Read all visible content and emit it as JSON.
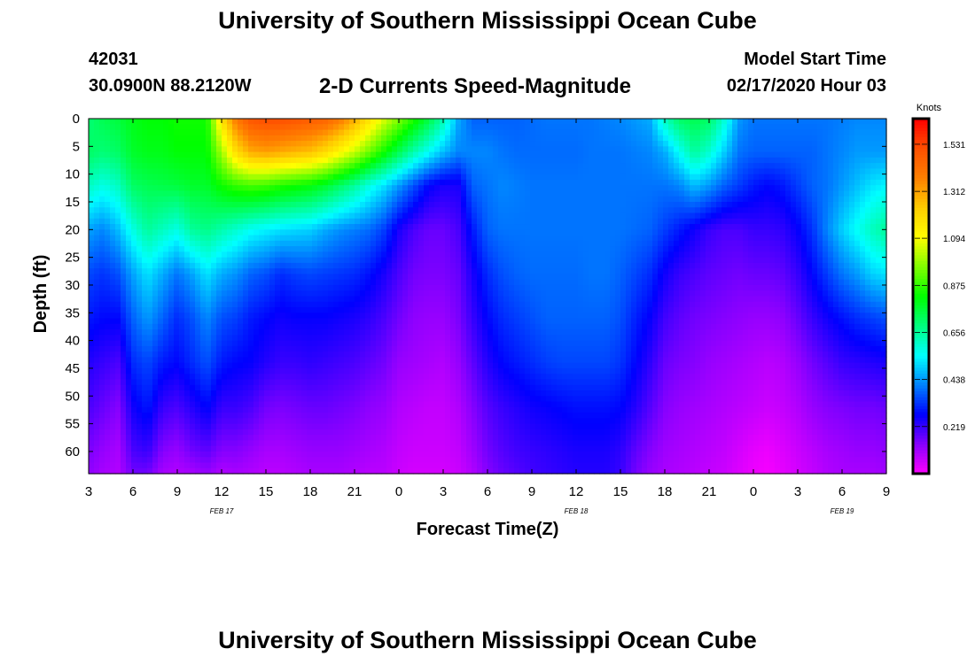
{
  "header": {
    "title": "University of Southern Mississippi Ocean Cube",
    "station_id": "42031",
    "station_coords": "30.0900N 88.2120W",
    "plot_title": "2-D Currents Speed-Magnitude",
    "model_label": "Model Start Time",
    "model_time": "02/17/2020 Hour 03"
  },
  "footer": {
    "title": "University of Southern Mississippi Ocean Cube"
  },
  "chart_data": {
    "type": "heatmap",
    "title": "2-D Currents Speed-Magnitude",
    "xlabel": "Forecast Time(Z)",
    "ylabel": "Depth (ft)",
    "x_hours_range": [
      0,
      54
    ],
    "x_tick_labels": [
      "3",
      "6",
      "9",
      "12",
      "15",
      "18",
      "21",
      "0",
      "3",
      "6",
      "9",
      "12",
      "15",
      "18",
      "21",
      "0",
      "3",
      "6",
      "9"
    ],
    "date_labels": [
      {
        "label": "FEB 17",
        "hour": 9
      },
      {
        "label": "FEB 18",
        "hour": 33
      },
      {
        "label": "FEB 19",
        "hour": 51
      }
    ],
    "y_ticks": [
      0,
      5,
      10,
      15,
      20,
      25,
      30,
      35,
      40,
      45,
      50,
      55,
      60
    ],
    "ylim": [
      0,
      64
    ],
    "colorbar": {
      "label": "Knots",
      "tick_labels": [
        "1.531",
        "1.312",
        "1.094",
        "0.875",
        "0.656",
        "0.438",
        "0.219"
      ],
      "tick_values": [
        1.531,
        1.312,
        1.094,
        0.875,
        0.656,
        0.438,
        0.219
      ],
      "range": [
        0,
        1.65
      ],
      "colors": [
        "#ff00ff",
        "#8800ff",
        "#0000ff",
        "#0080ff",
        "#00ffff",
        "#00ff80",
        "#00ff00",
        "#80ff00",
        "#ffff00",
        "#ffcc00",
        "#ff8000",
        "#ff5000",
        "#ff0000"
      ]
    },
    "grid_hours": [
      0,
      1,
      2,
      3,
      4,
      5,
      6,
      7,
      8,
      9,
      10,
      11,
      12,
      13,
      14,
      15,
      16,
      17,
      18,
      19,
      20,
      21,
      22,
      23,
      24,
      25,
      26,
      27,
      28,
      29,
      30,
      31,
      32,
      33,
      34,
      35,
      36,
      37,
      38,
      39,
      40,
      41,
      42,
      43,
      44,
      45,
      46,
      47,
      48,
      49,
      50,
      51,
      52,
      53,
      54
    ],
    "profile_depths": [
      0,
      6,
      12,
      20,
      28,
      36,
      44,
      52,
      60,
      64
    ],
    "speed_profiles": [
      [
        0.7,
        0.72,
        0.62,
        0.45,
        0.35,
        0.3,
        0.24,
        0.2,
        0.15,
        0.13
      ],
      [
        0.74,
        0.7,
        0.58,
        0.42,
        0.33,
        0.28,
        0.22,
        0.17,
        0.12,
        0.1
      ],
      [
        0.76,
        0.72,
        0.62,
        0.48,
        0.36,
        0.28,
        0.2,
        0.14,
        0.1,
        0.09
      ],
      [
        0.8,
        0.78,
        0.72,
        0.58,
        0.45,
        0.38,
        0.32,
        0.26,
        0.2,
        0.16
      ],
      [
        0.82,
        0.8,
        0.74,
        0.66,
        0.52,
        0.44,
        0.35,
        0.3,
        0.22,
        0.16
      ],
      [
        0.82,
        0.8,
        0.75,
        0.62,
        0.46,
        0.38,
        0.3,
        0.22,
        0.14,
        0.1
      ],
      [
        0.84,
        0.82,
        0.76,
        0.58,
        0.4,
        0.32,
        0.28,
        0.2,
        0.12,
        0.09
      ],
      [
        0.84,
        0.82,
        0.78,
        0.66,
        0.45,
        0.36,
        0.32,
        0.24,
        0.16,
        0.1
      ],
      [
        0.84,
        0.82,
        0.78,
        0.68,
        0.52,
        0.42,
        0.36,
        0.28,
        0.18,
        0.12
      ],
      [
        1.18,
        1.0,
        0.84,
        0.64,
        0.46,
        0.36,
        0.3,
        0.22,
        0.14,
        0.09
      ],
      [
        1.4,
        1.2,
        0.88,
        0.6,
        0.43,
        0.34,
        0.28,
        0.22,
        0.14,
        0.1
      ],
      [
        1.5,
        1.3,
        0.9,
        0.56,
        0.38,
        0.3,
        0.27,
        0.2,
        0.12,
        0.09
      ],
      [
        1.52,
        1.32,
        0.89,
        0.54,
        0.36,
        0.28,
        0.24,
        0.16,
        0.1,
        0.08
      ],
      [
        1.52,
        1.3,
        0.86,
        0.52,
        0.32,
        0.26,
        0.22,
        0.15,
        0.1,
        0.08
      ],
      [
        1.5,
        1.28,
        0.84,
        0.51,
        0.34,
        0.27,
        0.22,
        0.16,
        0.11,
        0.09
      ],
      [
        1.48,
        1.26,
        0.82,
        0.5,
        0.35,
        0.27,
        0.23,
        0.17,
        0.12,
        0.1
      ],
      [
        1.46,
        1.2,
        0.78,
        0.46,
        0.34,
        0.27,
        0.22,
        0.17,
        0.12,
        0.1
      ],
      [
        1.4,
        1.12,
        0.72,
        0.43,
        0.33,
        0.26,
        0.21,
        0.16,
        0.12,
        0.1
      ],
      [
        1.3,
        1.04,
        0.66,
        0.41,
        0.32,
        0.25,
        0.2,
        0.15,
        0.11,
        0.09
      ],
      [
        1.18,
        0.94,
        0.58,
        0.39,
        0.29,
        0.23,
        0.18,
        0.13,
        0.1,
        0.08
      ],
      [
        1.06,
        0.84,
        0.52,
        0.34,
        0.25,
        0.2,
        0.16,
        0.12,
        0.09,
        0.08
      ],
      [
        0.96,
        0.74,
        0.44,
        0.25,
        0.2,
        0.16,
        0.12,
        0.09,
        0.07,
        0.06
      ],
      [
        0.86,
        0.64,
        0.36,
        0.2,
        0.16,
        0.13,
        0.11,
        0.08,
        0.06,
        0.05
      ],
      [
        0.76,
        0.56,
        0.28,
        0.17,
        0.15,
        0.12,
        0.1,
        0.07,
        0.06,
        0.05
      ],
      [
        0.64,
        0.48,
        0.25,
        0.17,
        0.15,
        0.12,
        0.09,
        0.07,
        0.06,
        0.05
      ],
      [
        0.46,
        0.42,
        0.25,
        0.2,
        0.17,
        0.15,
        0.12,
        0.09,
        0.07,
        0.06
      ],
      [
        0.38,
        0.42,
        0.38,
        0.3,
        0.25,
        0.22,
        0.18,
        0.14,
        0.11,
        0.09
      ],
      [
        0.38,
        0.42,
        0.4,
        0.38,
        0.32,
        0.28,
        0.24,
        0.19,
        0.16,
        0.14
      ],
      [
        0.38,
        0.4,
        0.42,
        0.4,
        0.36,
        0.32,
        0.28,
        0.22,
        0.19,
        0.17
      ],
      [
        0.38,
        0.39,
        0.41,
        0.4,
        0.38,
        0.34,
        0.3,
        0.24,
        0.21,
        0.19
      ],
      [
        0.39,
        0.39,
        0.4,
        0.4,
        0.39,
        0.36,
        0.32,
        0.26,
        0.22,
        0.21
      ],
      [
        0.4,
        0.39,
        0.4,
        0.4,
        0.39,
        0.38,
        0.34,
        0.27,
        0.23,
        0.22
      ],
      [
        0.4,
        0.39,
        0.4,
        0.4,
        0.39,
        0.38,
        0.35,
        0.28,
        0.24,
        0.23
      ],
      [
        0.4,
        0.39,
        0.4,
        0.4,
        0.39,
        0.38,
        0.35,
        0.29,
        0.25,
        0.24
      ],
      [
        0.4,
        0.4,
        0.4,
        0.4,
        0.4,
        0.38,
        0.35,
        0.29,
        0.25,
        0.24
      ],
      [
        0.41,
        0.4,
        0.4,
        0.4,
        0.4,
        0.38,
        0.35,
        0.29,
        0.25,
        0.24
      ],
      [
        0.42,
        0.4,
        0.4,
        0.4,
        0.38,
        0.36,
        0.33,
        0.28,
        0.23,
        0.22
      ],
      [
        0.44,
        0.41,
        0.4,
        0.39,
        0.35,
        0.31,
        0.28,
        0.24,
        0.18,
        0.16
      ],
      [
        0.46,
        0.42,
        0.4,
        0.38,
        0.32,
        0.27,
        0.23,
        0.19,
        0.14,
        0.12
      ],
      [
        0.62,
        0.46,
        0.4,
        0.34,
        0.26,
        0.21,
        0.17,
        0.14,
        0.11,
        0.1
      ],
      [
        0.72,
        0.56,
        0.42,
        0.3,
        0.22,
        0.18,
        0.15,
        0.12,
        0.1,
        0.09
      ],
      [
        0.74,
        0.66,
        0.48,
        0.26,
        0.2,
        0.16,
        0.14,
        0.11,
        0.09,
        0.08
      ],
      [
        0.72,
        0.6,
        0.44,
        0.22,
        0.18,
        0.15,
        0.12,
        0.1,
        0.08,
        0.07
      ],
      [
        0.6,
        0.5,
        0.38,
        0.2,
        0.17,
        0.14,
        0.11,
        0.09,
        0.07,
        0.06
      ],
      [
        0.44,
        0.4,
        0.34,
        0.2,
        0.16,
        0.13,
        0.1,
        0.08,
        0.05,
        0.04
      ],
      [
        0.4,
        0.38,
        0.3,
        0.22,
        0.17,
        0.12,
        0.09,
        0.07,
        0.03,
        0.02
      ],
      [
        0.4,
        0.38,
        0.28,
        0.22,
        0.17,
        0.12,
        0.08,
        0.06,
        0.02,
        0.01
      ],
      [
        0.4,
        0.38,
        0.3,
        0.23,
        0.18,
        0.13,
        0.09,
        0.07,
        0.04,
        0.03
      ],
      [
        0.4,
        0.38,
        0.34,
        0.27,
        0.22,
        0.17,
        0.12,
        0.09,
        0.06,
        0.05
      ],
      [
        0.4,
        0.38,
        0.38,
        0.33,
        0.28,
        0.22,
        0.16,
        0.12,
        0.08,
        0.07
      ],
      [
        0.4,
        0.4,
        0.4,
        0.42,
        0.34,
        0.26,
        0.19,
        0.14,
        0.1,
        0.09
      ],
      [
        0.41,
        0.42,
        0.44,
        0.5,
        0.4,
        0.29,
        0.22,
        0.15,
        0.11,
        0.1
      ],
      [
        0.42,
        0.44,
        0.48,
        0.56,
        0.44,
        0.32,
        0.23,
        0.16,
        0.12,
        0.1
      ],
      [
        0.42,
        0.44,
        0.52,
        0.62,
        0.5,
        0.34,
        0.24,
        0.16,
        0.12,
        0.1
      ],
      [
        0.42,
        0.44,
        0.54,
        0.66,
        0.52,
        0.36,
        0.25,
        0.17,
        0.13,
        0.11
      ]
    ]
  }
}
